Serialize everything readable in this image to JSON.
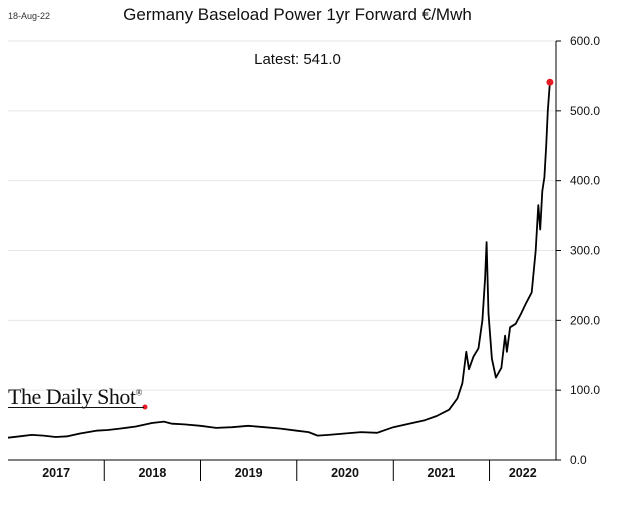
{
  "date_stamp": "18-Aug-22",
  "logo_text": "The Daily Shot",
  "logo_mark": "®",
  "colors": {
    "line": "#000000",
    "marker": "#e31b23",
    "grid": "#e6e6e6",
    "axis": "#000000"
  },
  "chart_data": {
    "type": "line",
    "title": "Germany Baseload Power 1yr Forward €/Mwh",
    "subtitle": "Latest:  541.0",
    "ylim": [
      0,
      600
    ],
    "y_ticks": [
      "0.0",
      "100.0",
      "200.0",
      "300.0",
      "400.0",
      "500.0",
      "600.0"
    ],
    "y_tick_values": [
      0,
      100,
      200,
      300,
      400,
      500,
      600
    ],
    "x_labels": [
      "2017",
      "2018",
      "2019",
      "2020",
      "2021",
      "2022"
    ],
    "xlim": [
      "2017-01-01",
      "2022-09-10"
    ],
    "grid": "horizontal",
    "series": [
      {
        "values": [
          [
            "2017-01-01",
            32
          ],
          [
            "2017-02-15",
            34
          ],
          [
            "2017-04-01",
            36
          ],
          [
            "2017-05-15",
            35
          ],
          [
            "2017-07-01",
            33
          ],
          [
            "2017-08-15",
            34
          ],
          [
            "2017-10-01",
            38
          ],
          [
            "2017-12-01",
            42
          ],
          [
            "2018-01-15",
            43
          ],
          [
            "2018-03-01",
            45
          ],
          [
            "2018-05-01",
            48
          ],
          [
            "2018-07-01",
            53
          ],
          [
            "2018-08-15",
            55
          ],
          [
            "2018-09-15",
            52
          ],
          [
            "2018-11-01",
            51
          ],
          [
            "2019-01-01",
            49
          ],
          [
            "2019-03-01",
            46
          ],
          [
            "2019-05-01",
            47
          ],
          [
            "2019-07-01",
            49
          ],
          [
            "2019-09-01",
            47
          ],
          [
            "2019-11-01",
            45
          ],
          [
            "2020-01-01",
            42
          ],
          [
            "2020-02-15",
            40
          ],
          [
            "2020-03-20",
            35
          ],
          [
            "2020-05-01",
            36
          ],
          [
            "2020-07-01",
            38
          ],
          [
            "2020-09-01",
            40
          ],
          [
            "2020-11-01",
            39
          ],
          [
            "2021-01-01",
            47
          ],
          [
            "2021-03-01",
            52
          ],
          [
            "2021-05-01",
            57
          ],
          [
            "2021-06-15",
            63
          ],
          [
            "2021-08-01",
            72
          ],
          [
            "2021-09-01",
            88
          ],
          [
            "2021-09-20",
            110
          ],
          [
            "2021-10-05",
            155
          ],
          [
            "2021-10-15",
            130
          ],
          [
            "2021-11-01",
            148
          ],
          [
            "2021-11-20",
            160
          ],
          [
            "2021-12-05",
            200
          ],
          [
            "2021-12-15",
            260
          ],
          [
            "2021-12-21",
            312
          ],
          [
            "2021-12-28",
            210
          ],
          [
            "2022-01-10",
            145
          ],
          [
            "2022-01-25",
            118
          ],
          [
            "2022-02-15",
            132
          ],
          [
            "2022-03-01",
            178
          ],
          [
            "2022-03-08",
            155
          ],
          [
            "2022-03-20",
            190
          ],
          [
            "2022-04-10",
            195
          ],
          [
            "2022-05-01",
            210
          ],
          [
            "2022-05-20",
            225
          ],
          [
            "2022-06-10",
            240
          ],
          [
            "2022-06-25",
            300
          ],
          [
            "2022-07-05",
            365
          ],
          [
            "2022-07-12",
            330
          ],
          [
            "2022-07-20",
            385
          ],
          [
            "2022-07-28",
            405
          ],
          [
            "2022-08-04",
            450
          ],
          [
            "2022-08-10",
            500
          ],
          [
            "2022-08-18",
            541
          ]
        ]
      }
    ],
    "latest_marker": {
      "x": "2022-08-18",
      "y": 541.0
    }
  }
}
